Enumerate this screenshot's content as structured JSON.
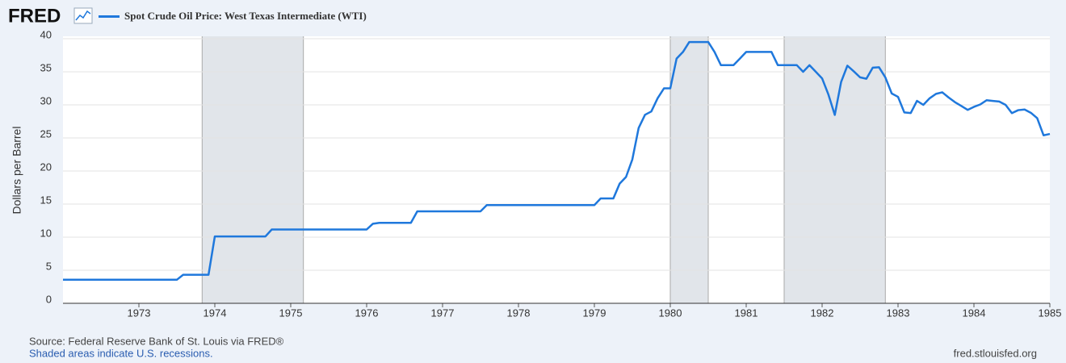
{
  "chart_data": {
    "type": "line",
    "logo": "FRED",
    "y_label": "Dollars per Barrel",
    "source": "Source: Federal Reserve Bank of St. Louis via FRED®",
    "note": "Shaded areas indicate U.S. recessions.",
    "site": "fred.stlouisfed.org",
    "xlim": [
      1972,
      1985
    ],
    "xticks": [
      1973,
      1974,
      1975,
      1976,
      1977,
      1978,
      1979,
      1980,
      1981,
      1982,
      1983,
      1984,
      1985
    ],
    "ylim": [
      0,
      40
    ],
    "yticks": [
      0,
      5,
      10,
      15,
      20,
      25,
      30,
      35,
      40
    ],
    "grid": true,
    "recessions": [
      [
        1973.833,
        1975.167
      ],
      [
        1980,
        1980.5
      ],
      [
        1981.5,
        1982.833
      ]
    ],
    "recession_color": "#e1e5ea",
    "x": [
      1972,
      1973.5,
      1973.583,
      1973.917,
      1974,
      1974.667,
      1974.75,
      1976,
      1976.083,
      1976.167,
      1976.583,
      1976.667,
      1977.5,
      1977.583,
      1979,
      1979.083,
      1979.25,
      1979.333,
      1979.417,
      1979.5,
      1979.583,
      1979.667,
      1979.75,
      1979.833,
      1979.917,
      1980,
      1980.083,
      1980.167,
      1980.25,
      1980.5,
      1980.583,
      1980.667,
      1980.833,
      1980.917,
      1981,
      1981.333,
      1981.417,
      1981.667,
      1981.75,
      1981.833,
      1981.917,
      1982,
      1982.083,
      1982.167,
      1982.25,
      1982.333,
      1982.417,
      1982.5,
      1982.583,
      1982.667,
      1982.75,
      1982.833,
      1982.917,
      1983,
      1983.083,
      1983.167,
      1983.25,
      1983.333,
      1983.417,
      1983.5,
      1983.583,
      1983.667,
      1983.75,
      1983.833,
      1983.917,
      1984,
      1984.083,
      1984.167,
      1984.25,
      1984.333,
      1984.417,
      1984.5,
      1984.583,
      1984.667,
      1984.75,
      1984.833,
      1984.917,
      1985
    ],
    "series": [
      {
        "name": "Spot Crude Oil Price: West Texas Intermediate (WTI)",
        "color": "#1f78dc",
        "values": [
          3.56,
          3.56,
          4.31,
          4.31,
          10.11,
          10.11,
          11.16,
          11.16,
          12.03,
          12.17,
          12.17,
          13.9,
          13.9,
          14.85,
          14.85,
          15.85,
          15.85,
          18.1,
          19.1,
          21.75,
          26.5,
          28.5,
          29,
          31,
          32.5,
          32.5,
          37,
          38,
          39.5,
          39.5,
          38,
          36,
          36,
          37,
          38,
          38,
          36,
          36,
          35,
          36,
          35,
          34,
          31.56,
          28.48,
          33.45,
          35.93,
          35.07,
          34.16,
          33.95,
          35.63,
          35.68,
          34.15,
          31.72,
          31.21,
          28.85,
          28.76,
          30.61,
          30,
          31,
          31.66,
          31.9,
          31.11,
          30.41,
          29.84,
          29.24,
          29.7,
          30.06,
          30.7,
          30.6,
          30.5,
          30,
          28.75,
          29.2,
          29.3,
          28.8,
          28,
          25.4,
          25.6
        ]
      }
    ]
  }
}
